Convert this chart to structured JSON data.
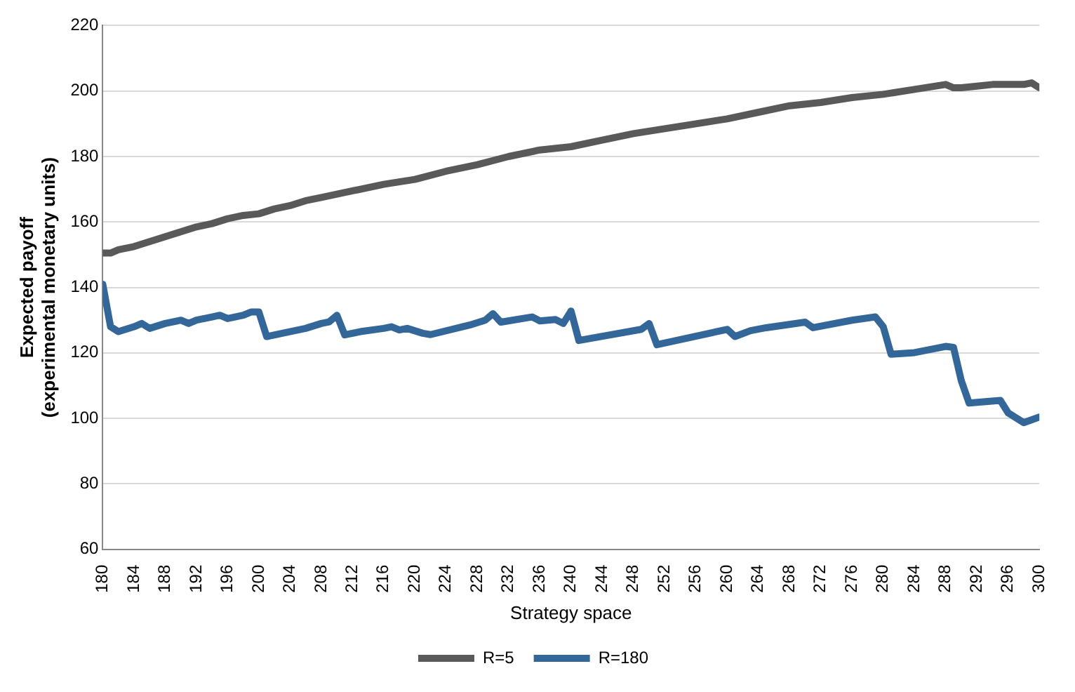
{
  "chart_data": {
    "type": "line",
    "xlabel": "Strategy space",
    "ylabel": "Expected payoff\n(experimental monetary units)",
    "xlim": [
      180,
      300
    ],
    "xticks": [
      180,
      184,
      188,
      192,
      196,
      200,
      204,
      208,
      212,
      216,
      220,
      224,
      228,
      232,
      236,
      240,
      244,
      248,
      252,
      256,
      260,
      264,
      268,
      272,
      276,
      280,
      284,
      288,
      292,
      296,
      300
    ],
    "ylim": [
      60,
      220
    ],
    "yticks": [
      60,
      80,
      100,
      120,
      140,
      160,
      180,
      200,
      220
    ],
    "grid": "y",
    "legend": "bottom",
    "marker": "none",
    "line_style": "solid",
    "series": [
      {
        "name": "R=5",
        "color": "#595959",
        "x": [
          180,
          181,
          182,
          184,
          186,
          188,
          190,
          192,
          194,
          196,
          198,
          200,
          202,
          204,
          206,
          208,
          210,
          212,
          216,
          220,
          224,
          228,
          232,
          236,
          240,
          244,
          248,
          252,
          256,
          260,
          264,
          268,
          272,
          276,
          280,
          284,
          288,
          289,
          290,
          292,
          294,
          296,
          298,
          299,
          300
        ],
        "values": [
          150.5,
          150.5,
          151.5,
          152.5,
          154,
          155.5,
          157,
          158.5,
          159.5,
          161,
          162,
          162.5,
          164,
          165,
          166.5,
          167.5,
          168.5,
          169.5,
          171.5,
          173,
          175.5,
          177.5,
          180,
          182,
          183,
          185,
          187,
          188.5,
          190,
          191.5,
          193.5,
          195.5,
          196.5,
          198,
          199,
          200.5,
          202,
          201,
          201,
          201.5,
          202,
          202,
          202,
          202.5,
          201
        ]
      },
      {
        "name": "R=180",
        "color": "#336699",
        "x": [
          180,
          181,
          182,
          184,
          185,
          186,
          188,
          190,
          191,
          192,
          194,
          195,
          196,
          198,
          199,
          200,
          201,
          203,
          206,
          208,
          209,
          210,
          211,
          213,
          216,
          217,
          218,
          219,
          221,
          222,
          227,
          229,
          230,
          231,
          235,
          236,
          238,
          239,
          240,
          241,
          249,
          250,
          251,
          260,
          261,
          263,
          265,
          270,
          271,
          276,
          279,
          280,
          281,
          284,
          288,
          289,
          290,
          291,
          295,
          296,
          298,
          300
        ],
        "values": [
          141,
          128,
          126.5,
          128,
          129,
          127.5,
          129,
          130,
          129,
          130,
          131,
          131.5,
          130.5,
          131.5,
          132.5,
          132.5,
          125,
          126,
          127.5,
          129,
          129.5,
          131.5,
          125.5,
          126.5,
          127.5,
          128,
          127,
          127.5,
          126,
          125.6,
          128.5,
          130,
          132,
          129.4,
          131,
          129.8,
          130.2,
          129,
          132.8,
          123.8,
          127.2,
          129,
          122.5,
          127.2,
          125,
          126.8,
          127.7,
          129.4,
          127.7,
          130,
          131,
          128,
          119.6,
          120.1,
          122,
          121.7,
          111.5,
          104.7,
          105.5,
          101.7,
          98.7,
          100.4
        ]
      }
    ]
  }
}
